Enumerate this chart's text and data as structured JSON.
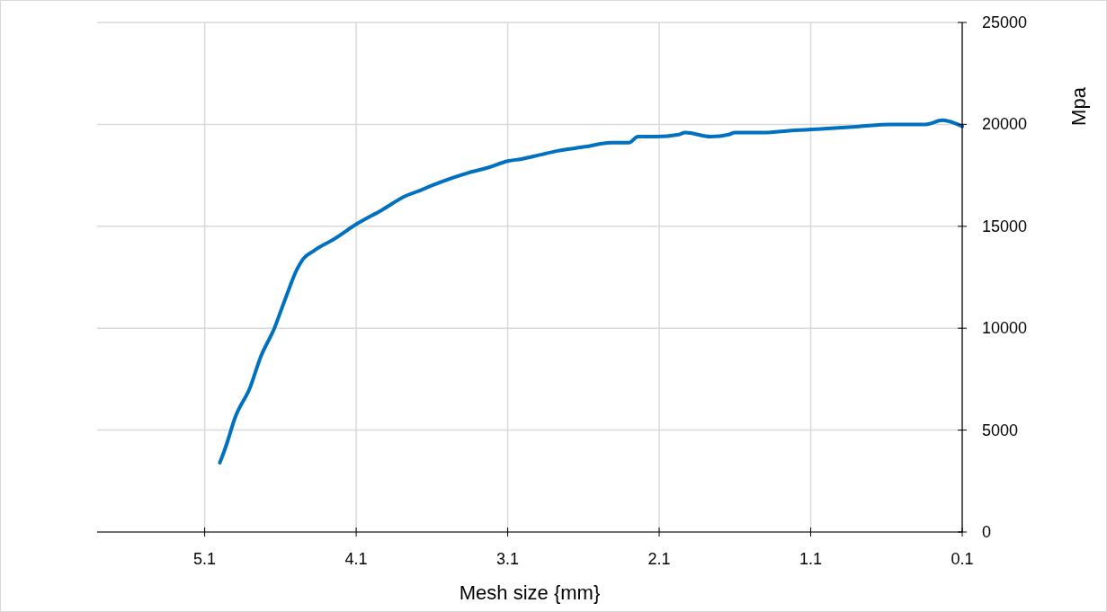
{
  "chart_data": {
    "type": "line",
    "xlabel": "Mesh size {mm}",
    "ylabel": "Mpa",
    "xlim": [
      5.81,
      0.1
    ],
    "xticks": [
      5.1,
      4.1,
      3.1,
      2.1,
      1.1,
      0.1
    ],
    "ylim": [
      0,
      25000
    ],
    "yticks": [
      0,
      5000,
      10000,
      15000,
      20000,
      25000
    ],
    "grid": true,
    "marker": "none",
    "line_style": "solid",
    "series": [
      {
        "color": "#0070c0",
        "x": [
          5.0,
          4.96,
          4.9,
          4.8,
          4.73,
          4.64,
          4.57,
          4.49,
          4.45,
          4.38,
          4.24,
          4.1,
          3.93,
          3.77,
          3.7,
          3.6,
          3.37,
          3.22,
          3.1,
          3.01,
          2.89,
          2.77,
          2.59,
          2.42,
          2.3,
          2.24,
          2.12,
          1.97,
          1.93,
          1.76,
          1.64,
          1.6,
          1.41,
          1.23,
          0.99,
          0.78,
          0.58,
          0.34,
          0.23,
          0.1
        ],
        "values": [
          3400,
          4200,
          5600,
          7100,
          8600,
          10000,
          11400,
          12900,
          13400,
          13800,
          14400,
          15100,
          15800,
          16500,
          16700,
          17000,
          17600,
          17900,
          18200,
          18300,
          18500,
          18700,
          18900,
          19100,
          19100,
          19400,
          19400,
          19500,
          19600,
          19400,
          19500,
          19600,
          19600,
          19700,
          19800,
          19900,
          20000,
          20000,
          20200,
          19900
        ]
      }
    ]
  }
}
